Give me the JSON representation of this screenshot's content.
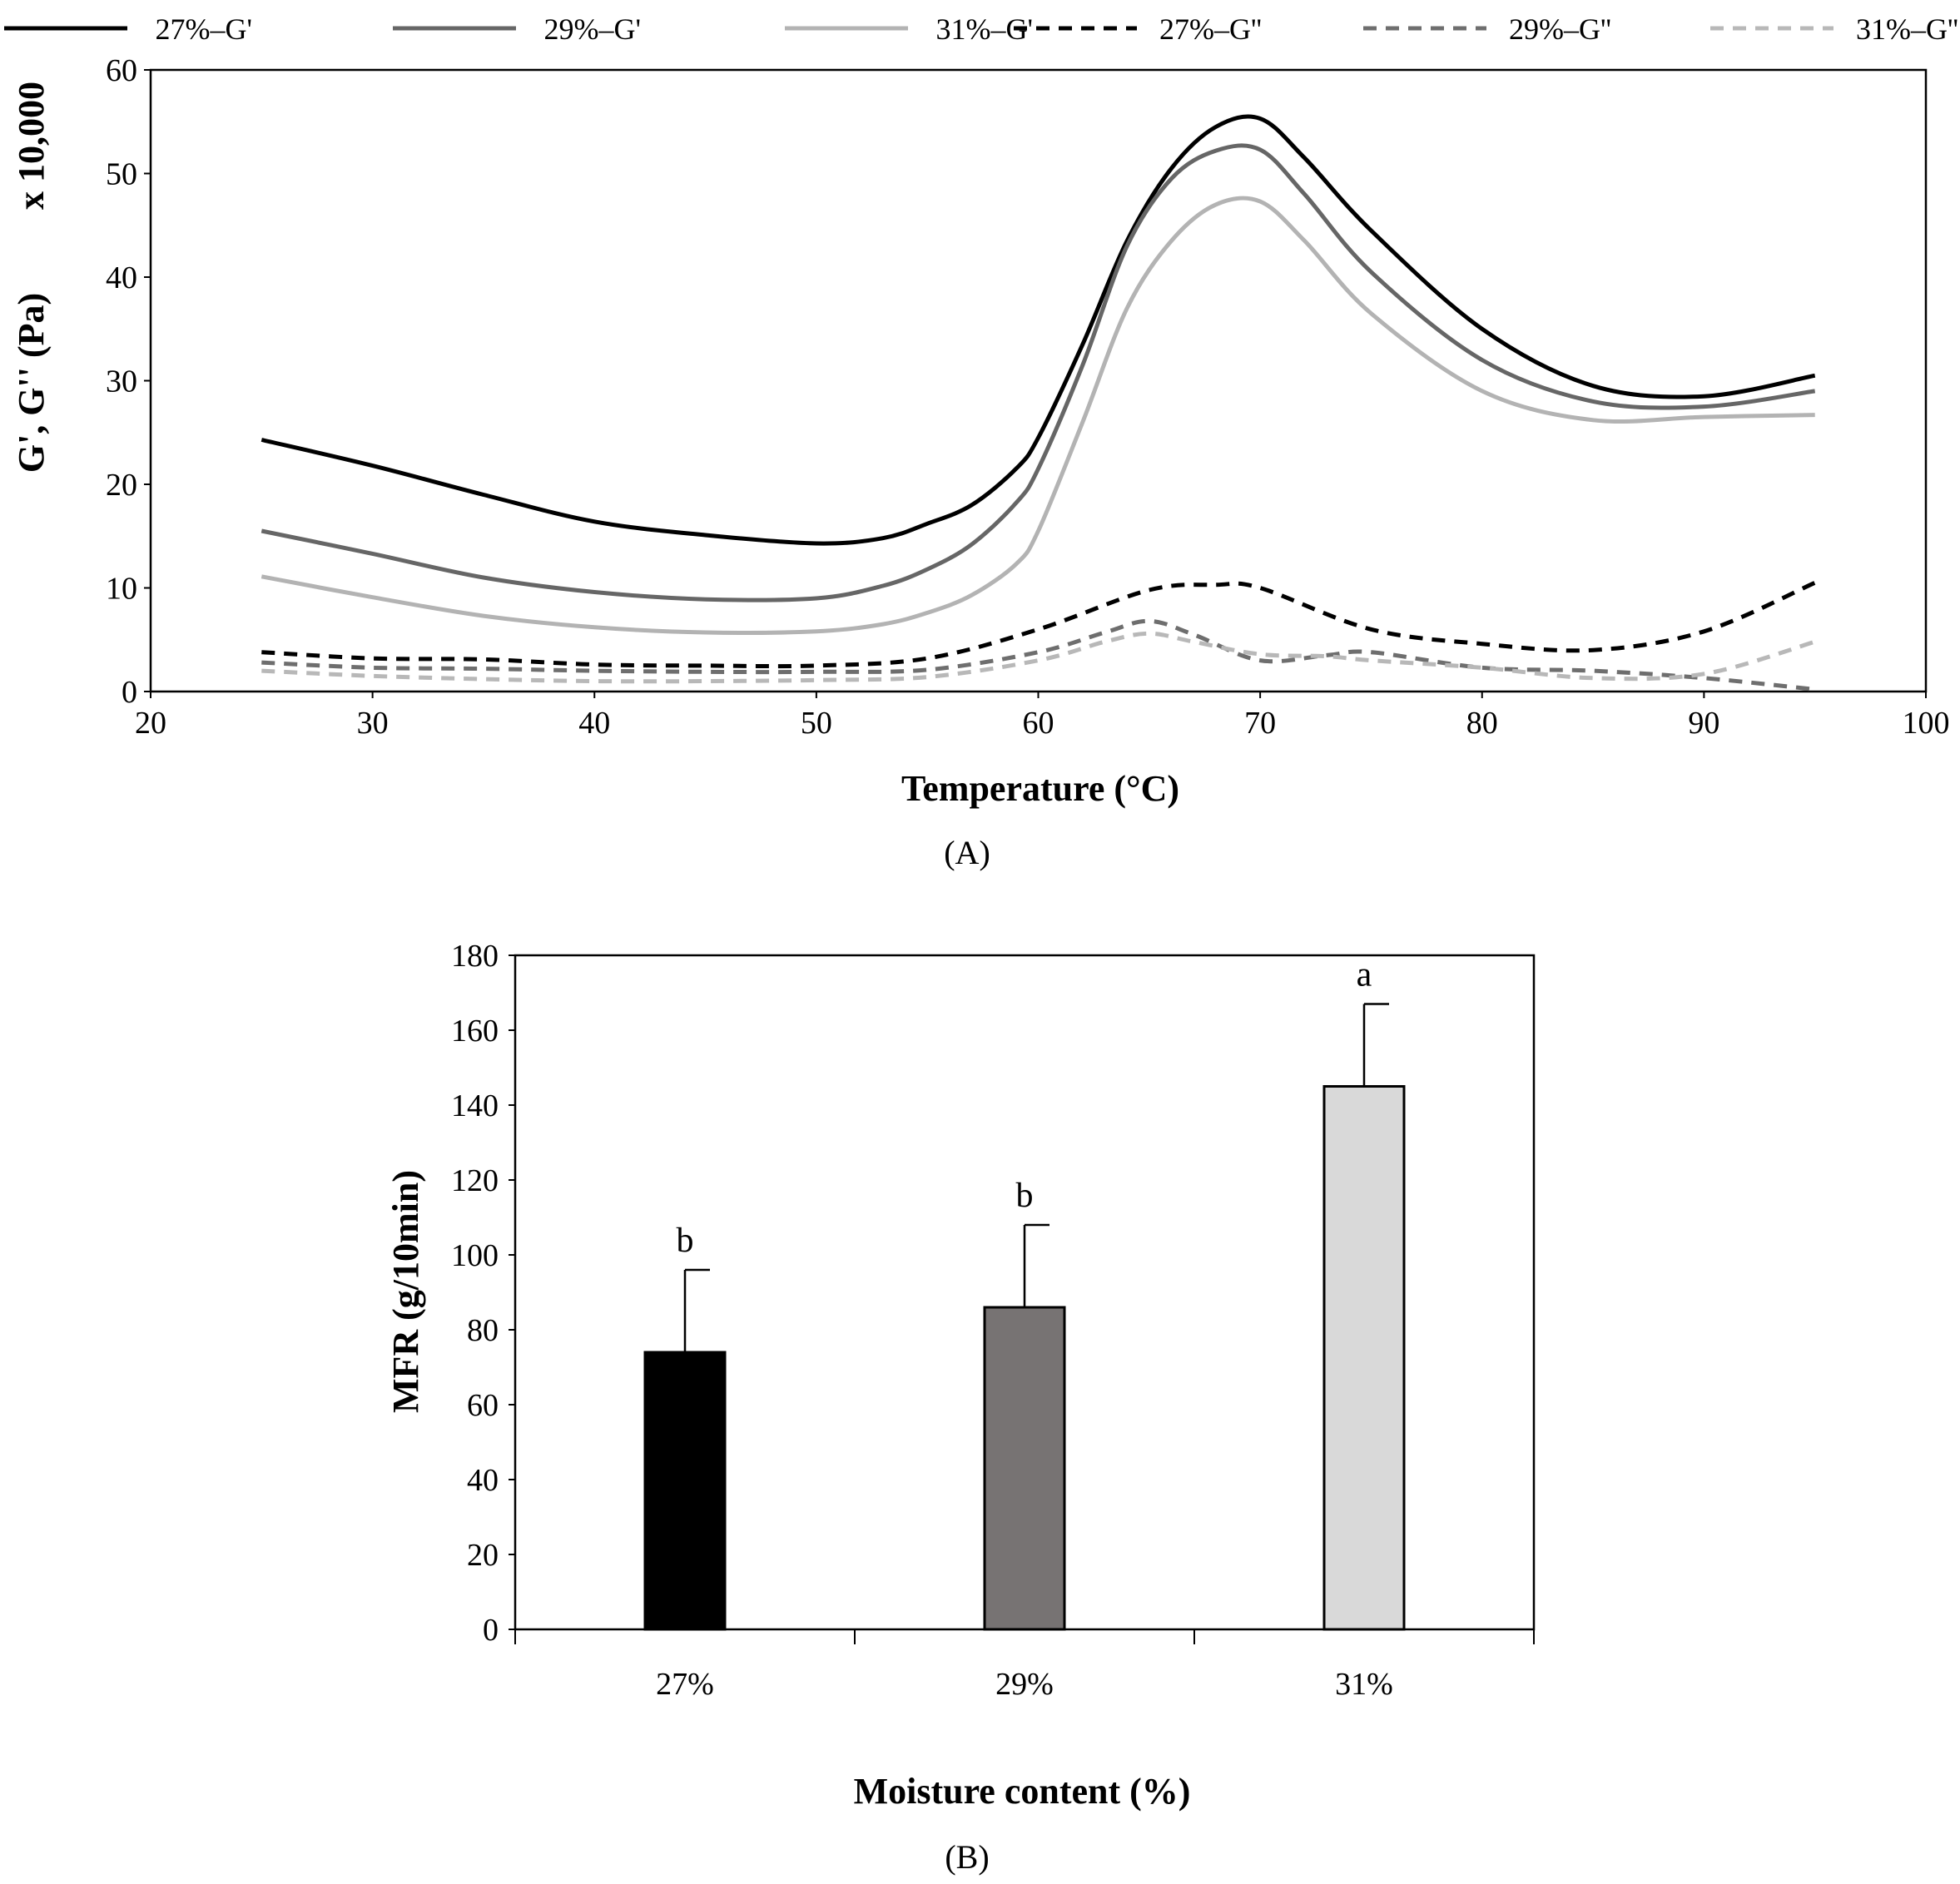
{
  "chart_data": [
    {
      "type": "line",
      "panel_label": "(A)",
      "xlabel": "Temperature (°C)",
      "ylabel": "G', G'' (Pa)",
      "ylabel_multiplier": "x 10,000",
      "xlim": [
        20,
        100
      ],
      "ylim": [
        0,
        60
      ],
      "x_ticks": [
        20,
        30,
        40,
        50,
        60,
        70,
        80,
        90,
        100
      ],
      "y_ticks": [
        0,
        10,
        20,
        30,
        40,
        50,
        60
      ],
      "legend_position": "top",
      "series": [
        {
          "name": "27%–G'",
          "color": "#000000",
          "dashed": false,
          "x": [
            25,
            30,
            35,
            40,
            45,
            50,
            53,
            55,
            57,
            59,
            60,
            62,
            64,
            66,
            68,
            70,
            72,
            75,
            80,
            85,
            90,
            95
          ],
          "y": [
            24.3,
            21.8,
            19.0,
            16.4,
            15.1,
            14.3,
            14.8,
            16.2,
            18.0,
            21.5,
            24.5,
            33.5,
            43.5,
            50.5,
            54.5,
            55.3,
            51.5,
            44.5,
            35.0,
            29.5,
            28.5,
            30.5
          ]
        },
        {
          "name": "29%–G'",
          "color": "#666666",
          "dashed": false,
          "x": [
            25,
            30,
            35,
            40,
            45,
            50,
            53,
            55,
            57,
            59,
            60,
            62,
            64,
            66,
            68,
            70,
            72,
            75,
            80,
            85,
            90,
            95
          ],
          "y": [
            15.5,
            13.3,
            11.0,
            9.6,
            8.9,
            9.0,
            10.2,
            11.8,
            14.2,
            18.2,
            21.5,
            31.5,
            43.0,
            49.5,
            52.2,
            52.3,
            48.0,
            40.5,
            32.0,
            28.0,
            27.5,
            29.0
          ]
        },
        {
          "name": "31%–G'",
          "color": "#b3b3b3",
          "dashed": false,
          "x": [
            25,
            30,
            35,
            40,
            45,
            50,
            53,
            55,
            57,
            59,
            60,
            62,
            64,
            66,
            68,
            70,
            72,
            75,
            80,
            85,
            90,
            95
          ],
          "y": [
            11.1,
            9.1,
            7.3,
            6.2,
            5.7,
            5.8,
            6.5,
            7.6,
            9.3,
            12.3,
            15.5,
            26.0,
            37.0,
            43.5,
            47.0,
            47.3,
            43.5,
            36.5,
            29.0,
            26.2,
            26.5,
            26.7
          ]
        },
        {
          "name": "27%–G''",
          "color": "#000000",
          "dashed": true,
          "x": [
            25,
            30,
            35,
            40,
            45,
            50,
            55,
            60,
            65,
            68,
            70,
            75,
            80,
            85,
            90,
            95
          ],
          "y": [
            3.8,
            3.2,
            3.1,
            2.6,
            2.5,
            2.5,
            3.2,
            6.0,
            9.8,
            10.3,
            10.0,
            6.0,
            4.6,
            4.0,
            5.8,
            10.5
          ]
        },
        {
          "name": "29%–G''",
          "color": "#6e6e6e",
          "dashed": true,
          "x": [
            25,
            30,
            35,
            40,
            45,
            50,
            55,
            60,
            63,
            65,
            67,
            70,
            73,
            75,
            80,
            85,
            90,
            95
          ],
          "y": [
            2.8,
            2.3,
            2.2,
            2.0,
            1.9,
            1.9,
            2.1,
            3.8,
            5.7,
            6.8,
            5.5,
            3.0,
            3.5,
            3.8,
            2.3,
            2.0,
            1.3,
            0.2
          ]
        },
        {
          "name": "31%–G''",
          "color": "#b8b8b8",
          "dashed": true,
          "x": [
            25,
            30,
            35,
            40,
            45,
            50,
            55,
            60,
            63,
            65,
            67,
            70,
            73,
            75,
            80,
            85,
            90,
            95
          ],
          "y": [
            2.0,
            1.5,
            1.2,
            1.0,
            1.0,
            1.1,
            1.4,
            3.0,
            4.8,
            5.6,
            4.8,
            3.6,
            3.4,
            3.0,
            2.3,
            1.3,
            1.7,
            4.8
          ]
        }
      ]
    },
    {
      "type": "bar",
      "panel_label": "(B)",
      "xlabel": "Moisture content (%)",
      "ylabel": "MFR (g/10min)",
      "ylim": [
        0,
        180
      ],
      "y_ticks": [
        0,
        20,
        40,
        60,
        80,
        100,
        120,
        140,
        160,
        180
      ],
      "categories": [
        "27%",
        "29%",
        "31%"
      ],
      "values": [
        74,
        86,
        145
      ],
      "errors": [
        22,
        22,
        22
      ],
      "significance_letters": [
        "b",
        "b",
        "a"
      ],
      "bar_colors": [
        "#000000",
        "#777373",
        "#d9d9d9"
      ]
    }
  ]
}
